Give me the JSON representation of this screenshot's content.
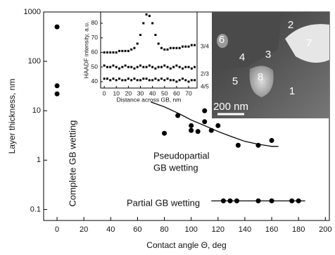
{
  "chart_data": [
    {
      "type": "scatter",
      "x_label": "Contact angle Θ, deg",
      "y_label": "Layer thickness, nm",
      "log_y": true,
      "xlim": [
        -10,
        203
      ],
      "ylim": [
        0.06,
        1000
      ],
      "xticks": [
        0,
        20,
        40,
        60,
        80,
        100,
        120,
        140,
        160,
        180,
        200
      ],
      "yticks": [
        1000,
        100,
        10,
        1,
        0.1
      ],
      "annotations": [
        "Complete GB wetting",
        "Pseudopartial",
        "GB wetting",
        "Partial GB wetting"
      ],
      "series": [
        {
          "mode": "markers",
          "color": "#000000",
          "x": [
            0,
            0,
            0
          ],
          "values": [
            500,
            32,
            22
          ]
        },
        {
          "mode": "markers",
          "color": "#000000",
          "x": [
            80,
            90,
            100,
            100,
            105,
            110,
            110,
            115,
            120,
            135,
            150,
            160
          ],
          "values": [
            3.5,
            8,
            5,
            4,
            3.8,
            10,
            6,
            4,
            5,
            2,
            2,
            2.5
          ]
        },
        {
          "mode": "line",
          "color": "#000000",
          "x": [
            70,
            80,
            90,
            100,
            110,
            120,
            130,
            140,
            150,
            160,
            165
          ],
          "values": [
            15,
            12,
            9,
            6.5,
            5,
            3.8,
            3,
            2.4,
            2.1,
            1.9,
            1.9
          ]
        },
        {
          "mode": "markers",
          "color": "#000000",
          "x": [
            124,
            129,
            134,
            150,
            160,
            175,
            180
          ],
          "values": [
            0.15,
            0.15,
            0.15,
            0.15,
            0.15,
            0.15,
            0.15
          ]
        },
        {
          "mode": "line",
          "color": "#000000",
          "x": [
            115,
            185
          ],
          "values": [
            0.15,
            0.15
          ]
        }
      ]
    },
    {
      "type": "scatter",
      "x_label": "Distance across GB, nm",
      "y_label": "HAADF intensity, a.u.",
      "xlim": [
        -3,
        77
      ],
      "ylim": [
        35.6,
        87.7
      ],
      "xticks": [
        0,
        10,
        20,
        30,
        40,
        50,
        60,
        70
      ],
      "yticks": [
        40,
        50,
        60,
        70,
        80
      ],
      "x": [
        0,
        2.5,
        5,
        7.5,
        10,
        12.5,
        15,
        17.5,
        20,
        22.5,
        25,
        27.5,
        30,
        32.5,
        35,
        37.5,
        40,
        42.5,
        45,
        47.5,
        50,
        52.5,
        55,
        57.5,
        60,
        62.5,
        65,
        67.5,
        70,
        72.5,
        75
      ],
      "series": [
        {
          "name": "3/4",
          "color": "#000000",
          "values": [
            60,
            60,
            60,
            60,
            60,
            61,
            61,
            61,
            61,
            62,
            63,
            66,
            72,
            80,
            86,
            85,
            80,
            72,
            66,
            63,
            62,
            62,
            63,
            63,
            63,
            63,
            64,
            64,
            64,
            65,
            65
          ]
        },
        {
          "name": "2/3",
          "color": "#000000",
          "values": [
            51,
            50,
            50,
            51,
            50,
            49,
            50,
            51,
            50,
            50,
            49,
            50,
            51,
            50,
            50,
            51,
            50,
            49,
            50,
            50,
            51,
            50,
            49,
            50,
            51,
            50,
            49,
            50,
            50,
            49,
            50
          ]
        },
        {
          "name": "4/5",
          "color": "#000000",
          "values": [
            42,
            42,
            41,
            42,
            41,
            42,
            41,
            41,
            42,
            41,
            42,
            41,
            41,
            42,
            42,
            41,
            41,
            42,
            41,
            42,
            41,
            42,
            41,
            41,
            40,
            41,
            42,
            41,
            40,
            41,
            41
          ]
        }
      ]
    }
  ],
  "micrograph": {
    "labels": [
      "1",
      "2",
      "3",
      "4",
      "5",
      "6",
      "7",
      "8"
    ],
    "scale_bar": "200 nm"
  }
}
